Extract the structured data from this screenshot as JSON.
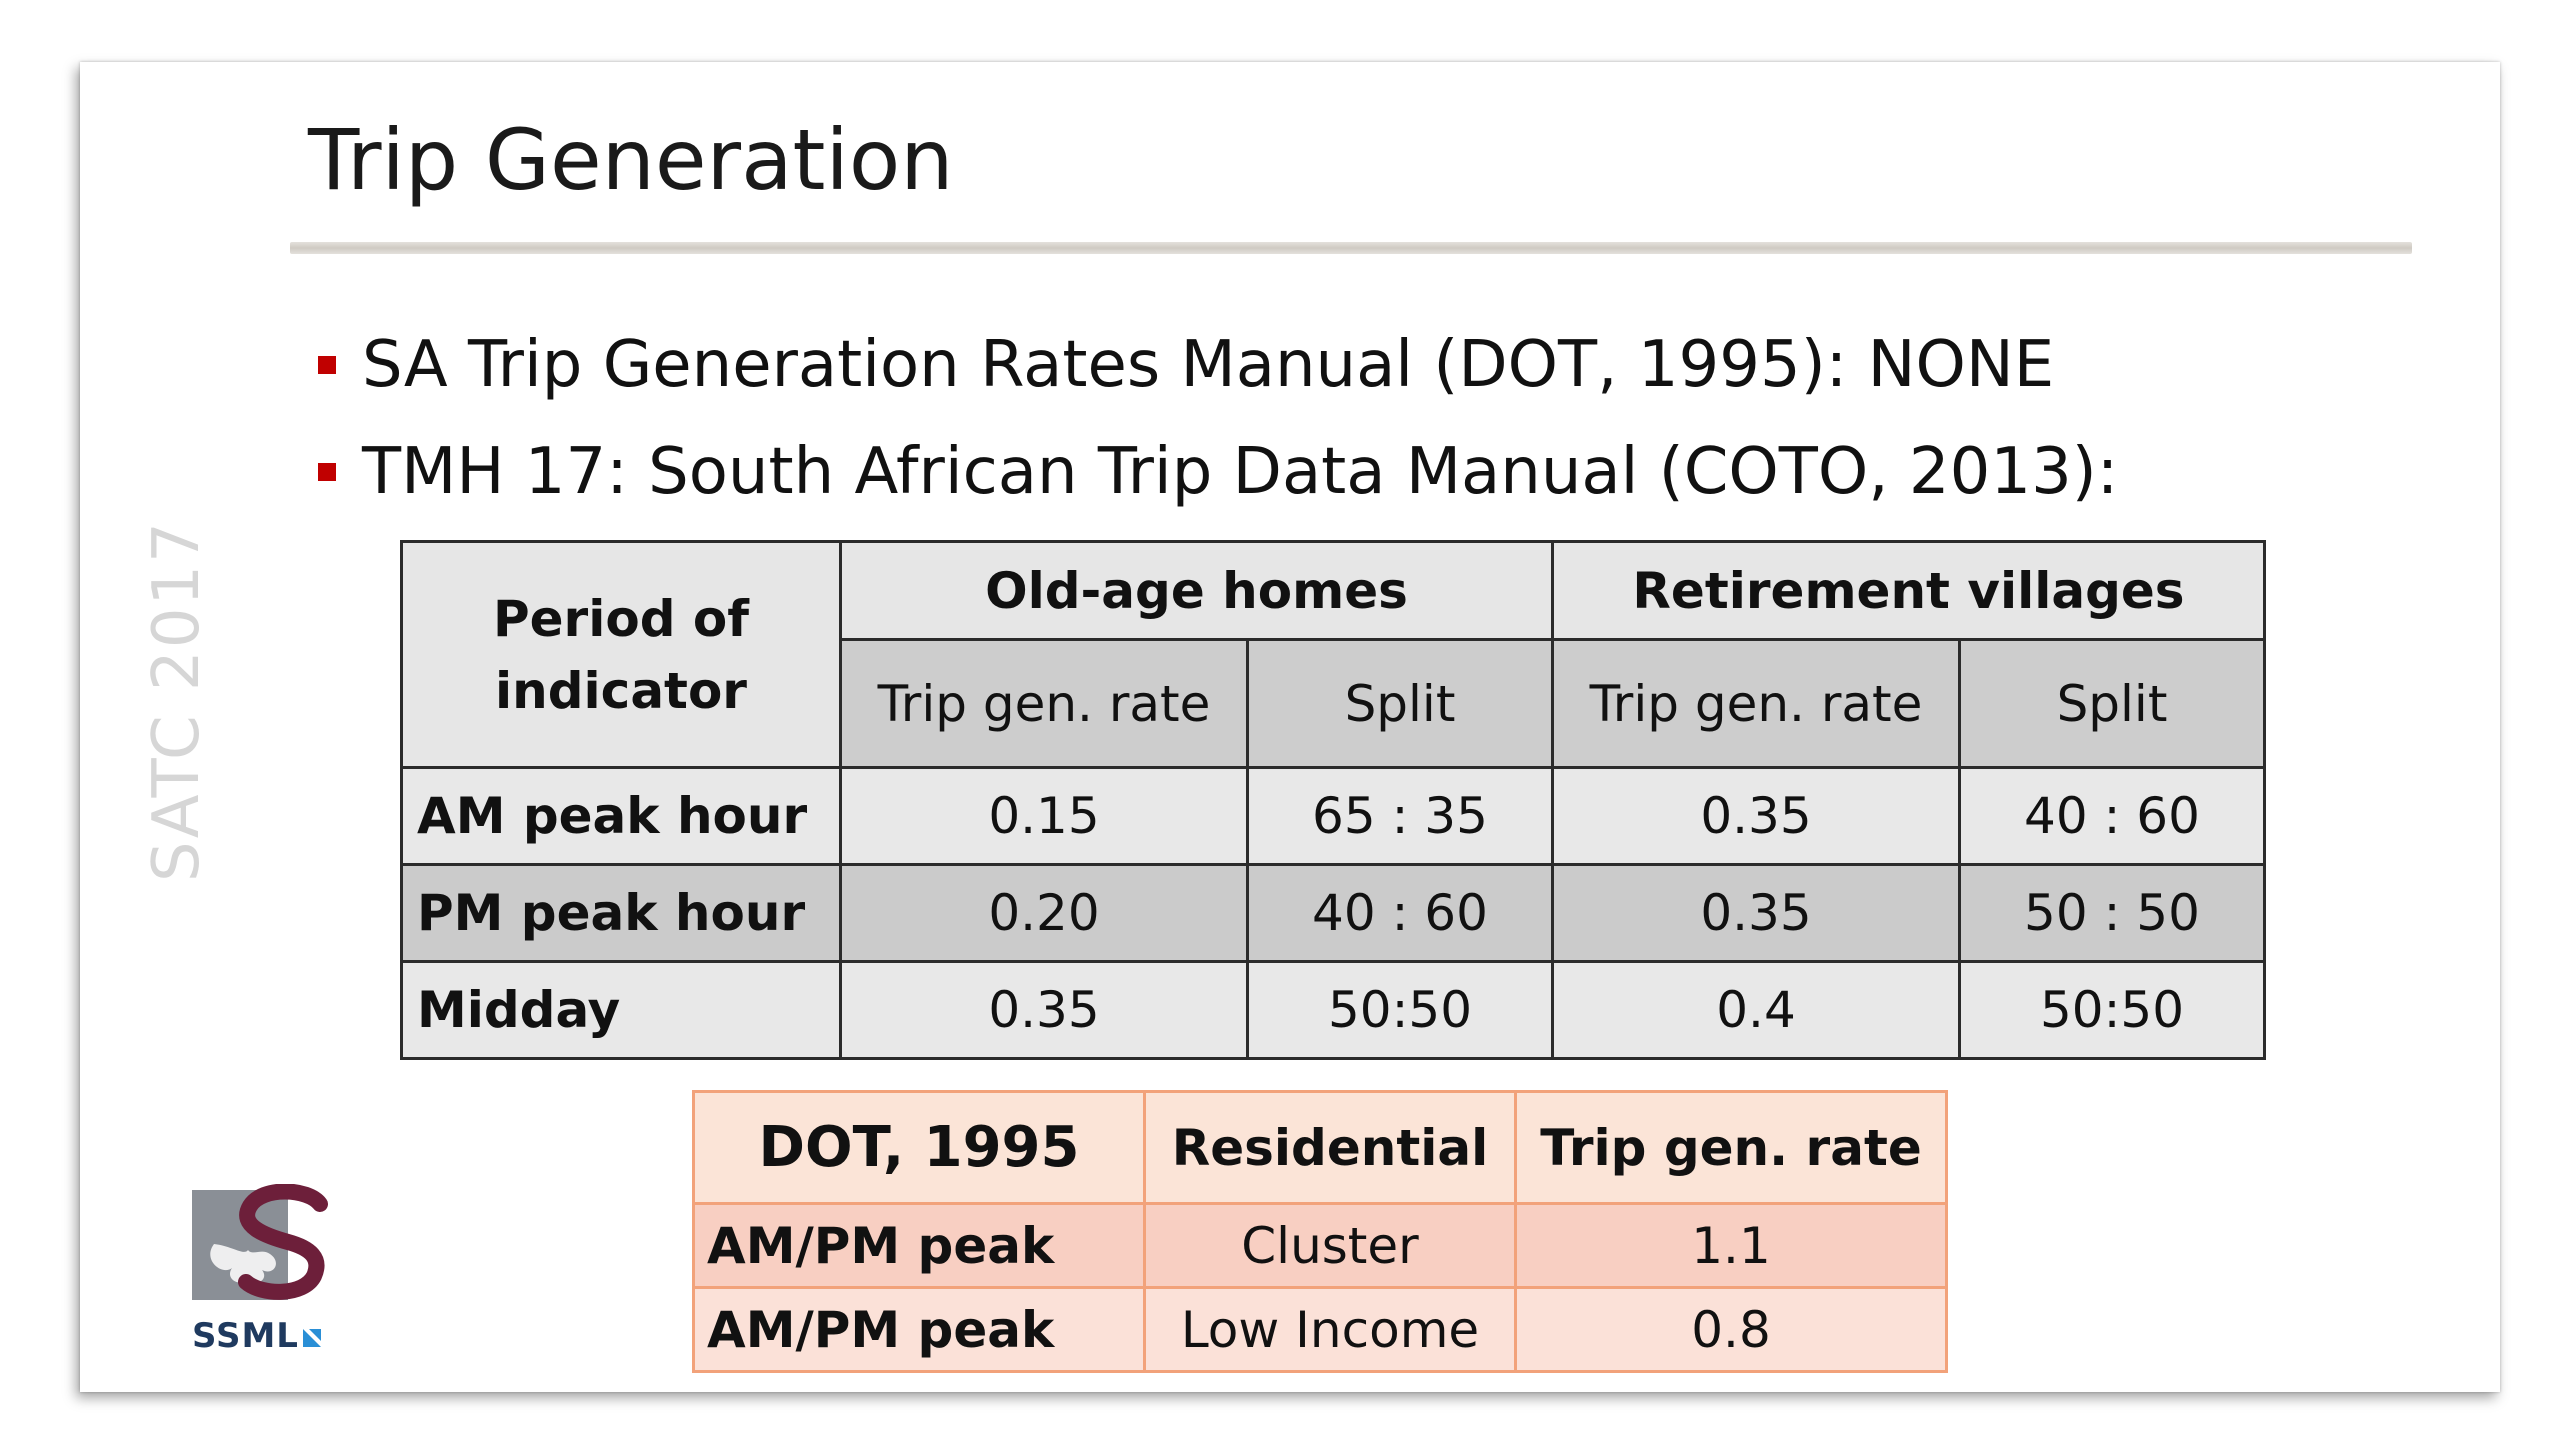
{
  "slide": {
    "title": "Trip Generation",
    "side_text": "SATC 2017",
    "bullets": [
      "SA Trip Generation Rates Manual (DOT, 1995): NONE",
      "TMH 17: South African Trip Data Manual (COTO, 2013):"
    ],
    "accent_color": "#c00000"
  },
  "tmh_table": {
    "header": {
      "period": "Period of indicator",
      "group1": "Old-age homes",
      "group2": "Retirement villages",
      "sub": [
        "Trip gen. rate",
        "Split",
        "Trip gen. rate",
        "Split"
      ]
    },
    "rows": [
      {
        "label": "AM peak hour",
        "values": [
          "0.15",
          "65 : 35",
          "0.35",
          "40 : 60"
        ]
      },
      {
        "label": "PM peak hour",
        "values": [
          "0.20",
          "40 : 60",
          "0.35",
          "50 : 50"
        ]
      },
      {
        "label": "Midday",
        "values": [
          "0.35",
          "50:50",
          "0.4",
          "50:50"
        ]
      }
    ]
  },
  "dot_table": {
    "header": [
      "DOT, 1995",
      "Residential",
      "Trip gen. rate"
    ],
    "rows": [
      {
        "label": "AM/PM peak",
        "type": "Cluster",
        "rate": "1.1"
      },
      {
        "label": "AM/PM peak",
        "type": "Low Income",
        "rate": "0.8"
      }
    ]
  },
  "logo": {
    "text": "SSML",
    "colors": {
      "primary": "#6d1f3a",
      "secondary": "#8a8f96",
      "text": "#1f3a5f",
      "accent": "#2a8fd6"
    }
  }
}
